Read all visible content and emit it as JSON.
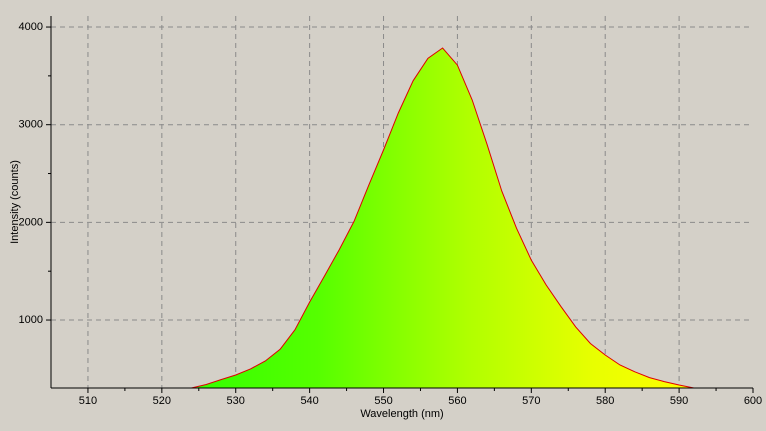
{
  "chart_data": {
    "type": "area",
    "x_label": "Wavelength (nm)",
    "y_label": "Intensity (counts)",
    "x": [
      524,
      526,
      528,
      530,
      532,
      534,
      536,
      538,
      540,
      542,
      544,
      546,
      548,
      550,
      552,
      554,
      556,
      558,
      560,
      562,
      564,
      566,
      568,
      570,
      572,
      574,
      576,
      578,
      580,
      582,
      584,
      586,
      588,
      590,
      592
    ],
    "series": [
      {
        "color": "#e00000",
        "values": [
          304,
          340,
          390,
          437,
          500,
          580,
          700,
          900,
          1184,
          1450,
          1720,
          2010,
          2380,
          2741,
          3120,
          3450,
          3680,
          3785,
          3610,
          3253,
          2800,
          2320,
          1940,
          1614,
          1360,
          1140,
          930,
          760,
          642,
          540,
          470,
          410,
          370,
          335,
          304
        ]
      }
    ],
    "xlim": [
      505,
      600
    ],
    "ylim": [
      304,
      4113
    ],
    "xticks": [
      510,
      520,
      530,
      540,
      550,
      560,
      570,
      580,
      590,
      600
    ],
    "yticks": [
      1000,
      2000,
      3000,
      4000
    ],
    "grid": true
  }
}
